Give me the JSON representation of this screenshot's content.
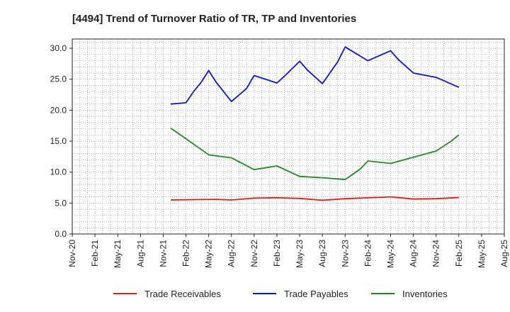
{
  "chart_data": {
    "type": "line",
    "title": "[4494]  Trend of Turnover Ratio of TR, TP and Inventories",
    "xlabel": "",
    "ylabel": "",
    "ylim": [
      0,
      31.5
    ],
    "yticks": [
      "0.0",
      "5.0",
      "10.0",
      "15.0",
      "20.0",
      "25.0",
      "30.0"
    ],
    "xticks": [
      "Nov-20",
      "Feb-21",
      "May-21",
      "Aug-21",
      "Nov-21",
      "Feb-22",
      "May-22",
      "Aug-22",
      "Nov-22",
      "Feb-23",
      "May-23",
      "Aug-23",
      "Nov-23",
      "Feb-24",
      "May-24",
      "Aug-24",
      "Nov-24",
      "Feb-25",
      "May-25",
      "Aug-25"
    ],
    "grid": true,
    "legend_position": "bottom",
    "x": [
      "Dec-21",
      "Feb-22",
      "Mar-22",
      "Apr-22",
      "May-22",
      "Jun-22",
      "Aug-22",
      "Oct-22",
      "Nov-22",
      "Feb-23",
      "Mar-23",
      "May-23",
      "Jun-23",
      "Aug-23",
      "Oct-23",
      "Nov-23",
      "Feb-24",
      "May-24",
      "Jun-24",
      "Aug-24",
      "Nov-24",
      "Jan-25",
      "Feb-25"
    ],
    "series": [
      {
        "name": "Trade Receivables",
        "color": "#e41a1c",
        "points": [
          [
            "Dec-21",
            5.5
          ],
          [
            "Mar-22",
            5.55
          ],
          [
            "Jun-22",
            5.6
          ],
          [
            "Aug-22",
            5.5
          ],
          [
            "Nov-22",
            5.8
          ],
          [
            "Feb-23",
            5.85
          ],
          [
            "May-23",
            5.75
          ],
          [
            "Aug-23",
            5.45
          ],
          [
            "Nov-23",
            5.7
          ],
          [
            "Feb-24",
            5.85
          ],
          [
            "May-24",
            6.0
          ],
          [
            "Aug-24",
            5.65
          ],
          [
            "Nov-24",
            5.7
          ],
          [
            "Feb-25",
            5.9
          ]
        ]
      },
      {
        "name": "Trade Payables",
        "color": "#0a14d7",
        "points": [
          [
            "Dec-21",
            21.0
          ],
          [
            "Feb-22",
            21.2
          ],
          [
            "Mar-22",
            23.0
          ],
          [
            "Apr-22",
            24.5
          ],
          [
            "May-22",
            26.4
          ],
          [
            "Jun-22",
            24.5
          ],
          [
            "Aug-22",
            21.4
          ],
          [
            "Oct-22",
            23.5
          ],
          [
            "Nov-22",
            25.6
          ],
          [
            "Feb-23",
            24.4
          ],
          [
            "Mar-23",
            25.5
          ],
          [
            "May-23",
            27.9
          ],
          [
            "Jun-23",
            26.5
          ],
          [
            "Aug-23",
            24.3
          ],
          [
            "Oct-23",
            27.8
          ],
          [
            "Nov-23",
            30.2
          ],
          [
            "Feb-24",
            28.0
          ],
          [
            "May-24",
            29.6
          ],
          [
            "Jun-24",
            28.2
          ],
          [
            "Aug-24",
            26.0
          ],
          [
            "Nov-24",
            25.3
          ],
          [
            "Feb-25",
            23.7
          ]
        ]
      },
      {
        "name": "Inventories",
        "color": "#1e8c1e",
        "points": [
          [
            "Dec-21",
            17.1
          ],
          [
            "Feb-22",
            15.4
          ],
          [
            "May-22",
            12.8
          ],
          [
            "Aug-22",
            12.3
          ],
          [
            "Nov-22",
            10.4
          ],
          [
            "Feb-23",
            11.0
          ],
          [
            "May-23",
            9.3
          ],
          [
            "Aug-23",
            9.1
          ],
          [
            "Nov-23",
            8.8
          ],
          [
            "Jan-24",
            10.5
          ],
          [
            "Feb-24",
            11.8
          ],
          [
            "May-24",
            11.4
          ],
          [
            "Aug-24",
            12.4
          ],
          [
            "Nov-24",
            13.4
          ],
          [
            "Jan-25",
            15.0
          ],
          [
            "Feb-25",
            16.0
          ]
        ]
      }
    ]
  }
}
